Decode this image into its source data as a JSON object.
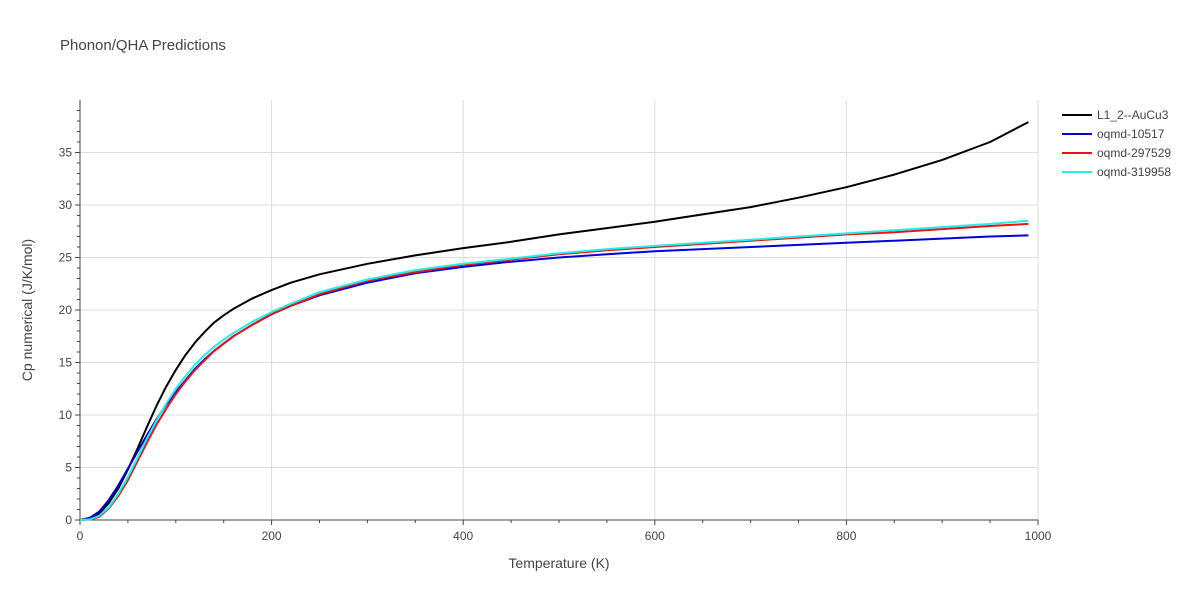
{
  "chart_data": {
    "type": "line",
    "title": "Phonon/QHA Predictions",
    "xlabel": "Temperature (K)",
    "ylabel": "Cp numerical (J/K/mol)",
    "xlim": [
      0,
      1000
    ],
    "ylim": [
      0,
      40
    ],
    "xticks": [
      0,
      200,
      400,
      600,
      800,
      1000
    ],
    "yticks": [
      0,
      5,
      10,
      15,
      20,
      25,
      30,
      35
    ],
    "grid": true,
    "legend_position": "top-right",
    "series": [
      {
        "name": "L1_2--AuCu3",
        "color": "#000000",
        "x": [
          0,
          10,
          20,
          30,
          40,
          50,
          60,
          70,
          80,
          90,
          100,
          110,
          120,
          130,
          140,
          150,
          160,
          180,
          200,
          220,
          250,
          300,
          350,
          400,
          450,
          500,
          550,
          600,
          650,
          700,
          750,
          800,
          850,
          900,
          950,
          990
        ],
        "y": [
          0,
          0.1,
          0.6,
          1.6,
          3.0,
          4.8,
          6.8,
          8.9,
          10.9,
          12.7,
          14.3,
          15.7,
          16.9,
          17.9,
          18.8,
          19.5,
          20.1,
          21.1,
          21.9,
          22.6,
          23.4,
          24.4,
          25.2,
          25.9,
          26.5,
          27.2,
          27.8,
          28.4,
          29.1,
          29.8,
          30.7,
          31.7,
          32.9,
          34.3,
          36.0,
          37.9
        ]
      },
      {
        "name": "oqmd-10517",
        "color": "#0000dd",
        "x": [
          0,
          10,
          20,
          30,
          40,
          50,
          60,
          70,
          80,
          90,
          100,
          110,
          120,
          130,
          140,
          150,
          160,
          180,
          200,
          220,
          250,
          300,
          350,
          400,
          450,
          500,
          550,
          600,
          650,
          700,
          750,
          800,
          850,
          900,
          950,
          990
        ],
        "y": [
          0,
          0.2,
          0.8,
          1.9,
          3.3,
          4.9,
          6.5,
          8.1,
          9.6,
          11.0,
          12.2,
          13.3,
          14.4,
          15.3,
          16.1,
          16.8,
          17.5,
          18.6,
          19.6,
          20.4,
          21.4,
          22.6,
          23.5,
          24.1,
          24.6,
          25.0,
          25.3,
          25.6,
          25.8,
          26.0,
          26.2,
          26.4,
          26.6,
          26.8,
          27.0,
          27.1
        ]
      },
      {
        "name": "oqmd-297529",
        "color": "#ee1111",
        "x": [
          0,
          10,
          20,
          30,
          40,
          50,
          60,
          70,
          80,
          90,
          100,
          110,
          120,
          130,
          140,
          150,
          160,
          180,
          200,
          220,
          250,
          300,
          350,
          400,
          450,
          500,
          550,
          600,
          650,
          700,
          750,
          800,
          850,
          900,
          950,
          990
        ],
        "y": [
          0,
          0.05,
          0.3,
          1.1,
          2.3,
          3.8,
          5.6,
          7.4,
          9.1,
          10.6,
          12.0,
          13.2,
          14.3,
          15.2,
          16.1,
          16.8,
          17.5,
          18.6,
          19.6,
          20.4,
          21.5,
          22.8,
          23.6,
          24.3,
          24.8,
          25.3,
          25.7,
          26.0,
          26.3,
          26.6,
          26.9,
          27.2,
          27.4,
          27.7,
          28.0,
          28.2
        ]
      },
      {
        "name": "oqmd-319958",
        "color": "#22eeee",
        "x": [
          0,
          10,
          20,
          30,
          40,
          50,
          60,
          70,
          80,
          90,
          100,
          110,
          120,
          130,
          140,
          150,
          160,
          180,
          200,
          220,
          250,
          300,
          350,
          400,
          450,
          500,
          550,
          600,
          650,
          700,
          750,
          800,
          850,
          900,
          950,
          990
        ],
        "y": [
          0,
          0.05,
          0.4,
          1.2,
          2.5,
          4.1,
          5.9,
          7.8,
          9.5,
          11.1,
          12.5,
          13.7,
          14.8,
          15.7,
          16.5,
          17.2,
          17.8,
          18.9,
          19.8,
          20.6,
          21.7,
          22.9,
          23.8,
          24.4,
          24.9,
          25.4,
          25.8,
          26.1,
          26.4,
          26.7,
          27.0,
          27.3,
          27.6,
          27.9,
          28.2,
          28.5
        ]
      }
    ]
  }
}
